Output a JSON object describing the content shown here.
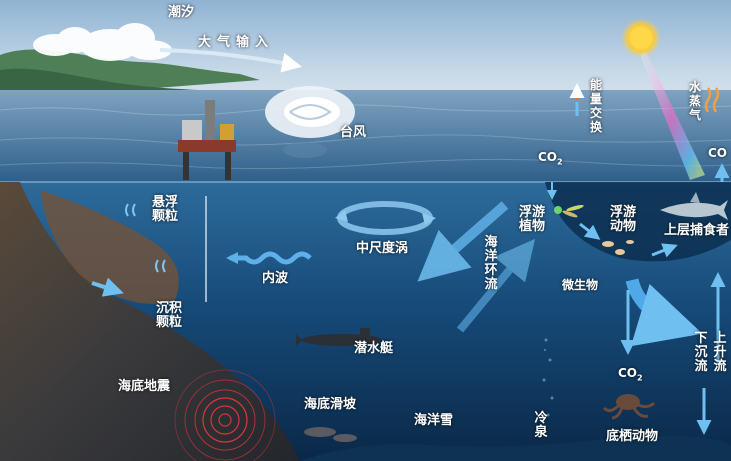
{
  "labels": {
    "tide": "潮汐",
    "atmospheric_input": "大气输入",
    "typhoon": "台风",
    "energy_exchange": "能量交换",
    "water_vapor": "水蒸气",
    "co2_top": "CO",
    "co2_top_sub": "2",
    "co2_right": "CO",
    "suspended_particles": "悬浮颗粒",
    "mesoscale_eddy": "中尺度涡",
    "phytoplankton": "浮游植物",
    "zooplankton": "浮游动物",
    "top_predator": "上层捕食者",
    "internal_wave": "内波",
    "ocean_circulation": "海洋环流",
    "microbe": "微生物",
    "sediment_particles": "沉积颗粒",
    "submarine": "潜水艇",
    "downwelling": "下沉流",
    "upwelling": "上升流",
    "co2_mid": "CO",
    "co2_mid_sub": "2",
    "seafloor_earthquake": "海底地震",
    "seafloor_landslide": "海底滑坡",
    "marine_snow": "海洋雪",
    "cold_seep": "冷泉",
    "benthic_animals": "底栖动物"
  },
  "colors": {
    "sky_top": "#a9c6de",
    "sea_surface": "#3f6f96",
    "deep_ocean": "#0e2f55",
    "arrow": "#5fb0e8",
    "sun": "#ffcc33",
    "warm_arrow": "#e8702a"
  }
}
